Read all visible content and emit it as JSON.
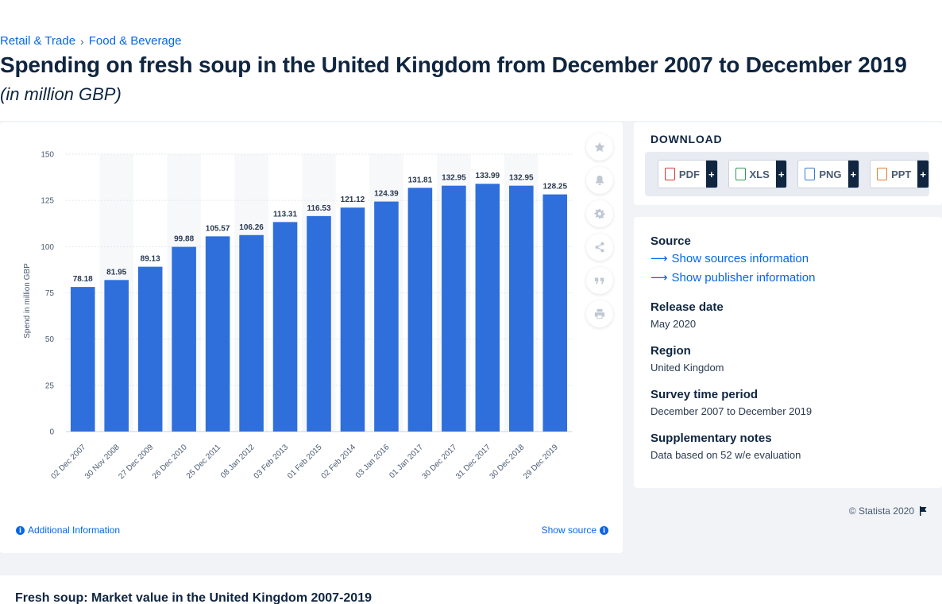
{
  "breadcrumb": {
    "items": [
      "Retail & Trade",
      "Food & Beverage"
    ],
    "separator": "›"
  },
  "page": {
    "title": "Spending on fresh soup in the United Kingdom from December 2007 to December 2019",
    "subtitle": "(in million GBP)"
  },
  "chart_data": {
    "type": "bar",
    "categories": [
      "02 Dec 2007",
      "30 Nov 2008",
      "27 Dec 2009",
      "26 Dec 2010",
      "25 Dec 2011",
      "08 Jan 2012",
      "03 Feb 2013",
      "01 Feb 2015",
      "02 Feb 2014",
      "03 Jan 2016",
      "01 Jan 2017",
      "30 Dec 2017",
      "31 Dec 2017",
      "30 Dec 2018",
      "29 Dec 2019"
    ],
    "values": [
      78.18,
      81.95,
      89.13,
      99.88,
      105.57,
      106.26,
      113.31,
      116.53,
      121.12,
      124.39,
      131.81,
      132.95,
      133.99,
      132.95,
      128.25
    ],
    "data_labels": [
      "78.18",
      "81.95",
      "89.13",
      "99.88",
      "105.57",
      "106.26",
      "113.31",
      "116.53",
      "121.12",
      "124.39",
      "131.81",
      "132.95",
      "133.99",
      "132.95",
      "128.25"
    ],
    "ylabel": "Spend in million GBP",
    "yticks": [
      0,
      25,
      50,
      75,
      100,
      125,
      150
    ],
    "ylim": [
      0,
      150
    ],
    "bar_color": "#2f6fdc",
    "grid": true
  },
  "chart_footer": {
    "copyright": "© Statista 2020",
    "additional_info": "Additional Information",
    "show_source": "Show source"
  },
  "download": {
    "title": "DOWNLOAD",
    "buttons": [
      {
        "label": "PDF",
        "color": "#e0352b"
      },
      {
        "label": "XLS",
        "color": "#2d9a4f"
      },
      {
        "label": "PNG",
        "color": "#3a7bd5"
      },
      {
        "label": "PPT",
        "color": "#e8772e"
      }
    ],
    "plus": "+"
  },
  "meta": {
    "source_heading": "Source",
    "source_link": "Show sources information",
    "publisher_link": "Show publisher information",
    "release_heading": "Release date",
    "release_value": "May 2020",
    "region_heading": "Region",
    "region_value": "United Kingdom",
    "survey_heading": "Survey time period",
    "survey_value": "December 2007 to December 2019",
    "notes_heading": "Supplementary notes",
    "notes_value": "Data based on 52 w/e evaluation"
  },
  "related": {
    "title": "Fresh soup: Market value in the United Kingdom 2007-2019"
  }
}
